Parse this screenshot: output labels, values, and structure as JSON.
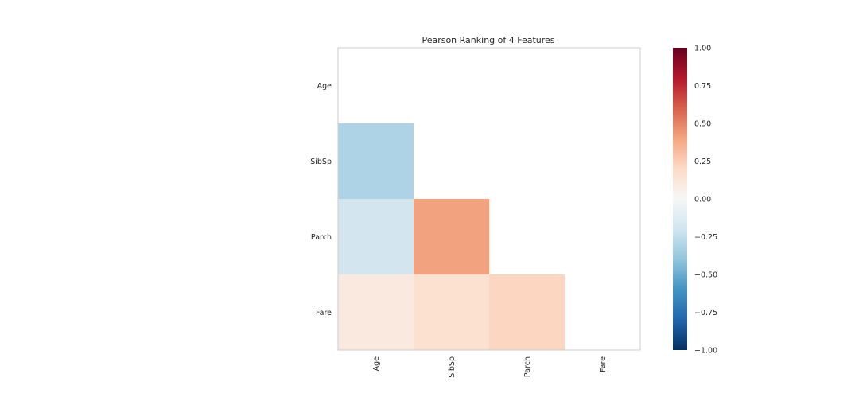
{
  "chart_data": {
    "type": "heatmap",
    "title": "Pearson Ranking of 4 Features",
    "features": [
      "Age",
      "SibSp",
      "Parch",
      "Fare"
    ],
    "lower_triangle_only": true,
    "cells": [
      {
        "row": "SibSp",
        "col": "Age",
        "value": -0.31
      },
      {
        "row": "Parch",
        "col": "Age",
        "value": -0.19
      },
      {
        "row": "Parch",
        "col": "SibSp",
        "value": 0.41
      },
      {
        "row": "Fare",
        "col": "Age",
        "value": 0.1
      },
      {
        "row": "Fare",
        "col": "SibSp",
        "value": 0.16
      },
      {
        "row": "Fare",
        "col": "Parch",
        "value": 0.22
      }
    ],
    "colorbar": {
      "colormap": "RdBu_r",
      "min": -1.0,
      "max": 1.0,
      "ticks": [
        "1.00",
        "0.75",
        "0.50",
        "0.25",
        "0.00",
        "−0.25",
        "−0.50",
        "−0.75",
        "−1.00"
      ],
      "tick_values": [
        1.0,
        0.75,
        0.5,
        0.25,
        0.0,
        -0.25,
        -0.5,
        -0.75,
        -1.0
      ]
    },
    "grid": false
  }
}
